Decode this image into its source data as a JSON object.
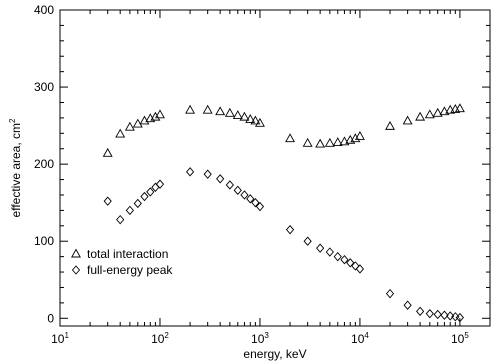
{
  "chart_data": {
    "type": "scatter",
    "x_scale": "log",
    "xlim": [
      10,
      200000
    ],
    "ylim": [
      -10,
      400
    ],
    "xlabel": "energy, keV",
    "ylabel": "effective area, cm²",
    "title": "",
    "x_ticks": [
      {
        "value": 10,
        "base": "10",
        "exp": "1"
      },
      {
        "value": 100,
        "base": "10",
        "exp": "2"
      },
      {
        "value": 1000,
        "base": "10",
        "exp": "3"
      },
      {
        "value": 10000,
        "base": "10",
        "exp": "4"
      },
      {
        "value": 100000,
        "base": "10",
        "exp": "5"
      }
    ],
    "y_ticks": [
      0,
      100,
      200,
      300,
      400
    ],
    "legend_position": "bottom-left",
    "series": [
      {
        "name": "total interaction",
        "marker": "triangle",
        "points": [
          [
            30,
            214
          ],
          [
            40,
            239
          ],
          [
            50,
            248
          ],
          [
            60,
            252
          ],
          [
            70,
            256
          ],
          [
            80,
            259
          ],
          [
            90,
            261
          ],
          [
            100,
            264
          ],
          [
            200,
            270
          ],
          [
            300,
            270
          ],
          [
            400,
            268
          ],
          [
            500,
            266
          ],
          [
            600,
            263
          ],
          [
            700,
            261
          ],
          [
            800,
            258
          ],
          [
            900,
            256
          ],
          [
            1000,
            253
          ],
          [
            2000,
            233
          ],
          [
            3000,
            227
          ],
          [
            4000,
            226
          ],
          [
            5000,
            227
          ],
          [
            6000,
            228
          ],
          [
            7000,
            229
          ],
          [
            8000,
            231
          ],
          [
            9000,
            233
          ],
          [
            10000,
            236
          ],
          [
            20000,
            249
          ],
          [
            30000,
            256
          ],
          [
            40000,
            261
          ],
          [
            50000,
            264
          ],
          [
            60000,
            266
          ],
          [
            70000,
            268
          ],
          [
            80000,
            270
          ],
          [
            90000,
            271
          ],
          [
            100000,
            272
          ]
        ]
      },
      {
        "name": "full-energy peak",
        "marker": "diamond",
        "points": [
          [
            30,
            152
          ],
          [
            40,
            128
          ],
          [
            50,
            140
          ],
          [
            60,
            149
          ],
          [
            70,
            158
          ],
          [
            80,
            164
          ],
          [
            90,
            170
          ],
          [
            100,
            174
          ],
          [
            200,
            190
          ],
          [
            300,
            187
          ],
          [
            400,
            181
          ],
          [
            500,
            173
          ],
          [
            600,
            166
          ],
          [
            700,
            160
          ],
          [
            800,
            155
          ],
          [
            900,
            150
          ],
          [
            1000,
            145
          ],
          [
            2000,
            115
          ],
          [
            3000,
            100
          ],
          [
            4000,
            91
          ],
          [
            5000,
            86
          ],
          [
            6000,
            80
          ],
          [
            7000,
            76
          ],
          [
            8000,
            72
          ],
          [
            9000,
            68
          ],
          [
            10000,
            64
          ],
          [
            20000,
            32
          ],
          [
            30000,
            17
          ],
          [
            40000,
            9
          ],
          [
            50000,
            6
          ],
          [
            60000,
            5
          ],
          [
            70000,
            4
          ],
          [
            80000,
            3
          ],
          [
            90000,
            2
          ],
          [
            100000,
            1
          ]
        ]
      }
    ]
  }
}
